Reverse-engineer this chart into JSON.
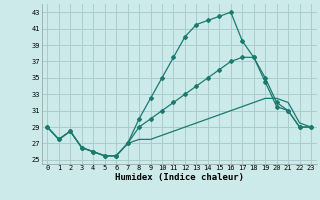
{
  "xlabel": "Humidex (Indice chaleur)",
  "background_color": "#cceaea",
  "grid_color": "#aacccc",
  "line_color": "#1a7a6e",
  "xlim": [
    -0.5,
    23.5
  ],
  "ylim": [
    24.5,
    44.0
  ],
  "xticks": [
    0,
    1,
    2,
    3,
    4,
    5,
    6,
    7,
    8,
    9,
    10,
    11,
    12,
    13,
    14,
    15,
    16,
    17,
    18,
    19,
    20,
    21,
    22,
    23
  ],
  "yticks": [
    25,
    27,
    29,
    31,
    33,
    35,
    37,
    39,
    41,
    43
  ],
  "curve1_x": [
    0,
    1,
    2,
    3,
    4,
    5,
    6,
    7,
    8,
    9,
    10,
    11,
    12,
    13,
    14,
    15,
    16,
    17,
    18,
    19,
    20,
    21,
    22,
    23
  ],
  "curve1_y": [
    29,
    27.5,
    28.5,
    26.5,
    26,
    25.5,
    25.5,
    27,
    30,
    32.5,
    35,
    37.5,
    40,
    41.5,
    42,
    42.5,
    43,
    39.5,
    37.5,
    35,
    32,
    31,
    29,
    29
  ],
  "curve2_x": [
    0,
    1,
    2,
    3,
    4,
    5,
    6,
    7,
    8,
    9,
    10,
    11,
    12,
    13,
    14,
    15,
    16,
    17,
    18,
    19,
    20,
    21,
    22,
    23
  ],
  "curve2_y": [
    29,
    27.5,
    28.5,
    26.5,
    26,
    25.5,
    25.5,
    27,
    29,
    30,
    31,
    32,
    33,
    34,
    35,
    36,
    37,
    37.5,
    37.5,
    34.5,
    31.5,
    31,
    29,
    29
  ],
  "curve3_x": [
    0,
    1,
    2,
    3,
    4,
    5,
    6,
    7,
    8,
    9,
    10,
    11,
    12,
    13,
    14,
    15,
    16,
    17,
    18,
    19,
    20,
    21,
    22,
    23
  ],
  "curve3_y": [
    29,
    27.5,
    28.5,
    26.5,
    26,
    25.5,
    25.5,
    27,
    27.5,
    27.5,
    28,
    28.5,
    29,
    29.5,
    30,
    30.5,
    31,
    31.5,
    32,
    32.5,
    32.5,
    32,
    29.5,
    29
  ]
}
